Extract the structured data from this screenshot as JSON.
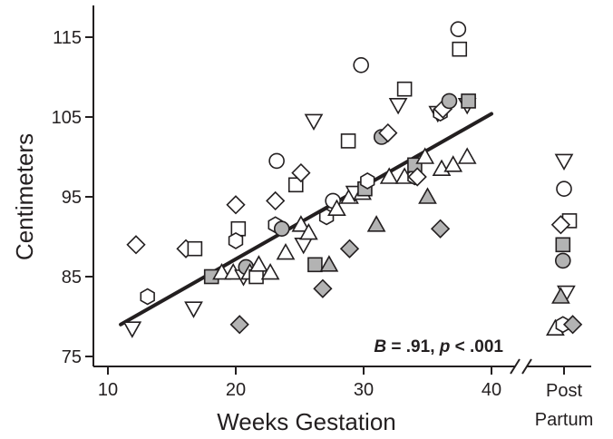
{
  "chart_data": {
    "type": "scatter",
    "xlabel": "Weeks Gestation",
    "ylabel": "Centimeters",
    "xlim": [
      10,
      43
    ],
    "ylim": [
      74,
      119
    ],
    "x_ticks": [
      10,
      20,
      30,
      40
    ],
    "y_ticks": [
      75,
      85,
      95,
      105,
      115
    ],
    "postpartum_tick_label": [
      "Post",
      "Partum"
    ],
    "annotation": {
      "b_label": "B",
      "b_value": " = .91, ",
      "p_label": "p",
      "p_value": " < .001"
    },
    "regression_line": {
      "x": [
        11,
        40
      ],
      "y": [
        79,
        105.4
      ]
    },
    "colors": {
      "ink": "#231f20",
      "open_fill": "#ffffff",
      "shaded_fill": "#b3b3b3"
    },
    "points": [
      {
        "x": 12.2,
        "y": 89.0,
        "shape": "diamond",
        "fill": "open"
      },
      {
        "x": 11.9,
        "y": 78.5,
        "shape": "triangle-down",
        "fill": "open"
      },
      {
        "x": 13.1,
        "y": 82.5,
        "shape": "hexagon",
        "fill": "open"
      },
      {
        "x": 16.1,
        "y": 88.5,
        "shape": "diamond",
        "fill": "open"
      },
      {
        "x": 16.8,
        "y": 88.5,
        "shape": "square",
        "fill": "open"
      },
      {
        "x": 16.7,
        "y": 81.0,
        "shape": "triangle-down",
        "fill": "open"
      },
      {
        "x": 18.1,
        "y": 85.0,
        "shape": "square",
        "fill": "shaded"
      },
      {
        "x": 18.9,
        "y": 85.5,
        "shape": "triangle-up",
        "fill": "open"
      },
      {
        "x": 20.0,
        "y": 94.0,
        "shape": "diamond",
        "fill": "open"
      },
      {
        "x": 20.2,
        "y": 91.0,
        "shape": "square",
        "fill": "open"
      },
      {
        "x": 20.0,
        "y": 89.5,
        "shape": "hexagon",
        "fill": "open"
      },
      {
        "x": 19.8,
        "y": 85.5,
        "shape": "triangle-up",
        "fill": "open"
      },
      {
        "x": 20.3,
        "y": 79.0,
        "shape": "diamond",
        "fill": "shaded"
      },
      {
        "x": 20.6,
        "y": 85.0,
        "shape": "triangle-down",
        "fill": "open"
      },
      {
        "x": 20.8,
        "y": 86.2,
        "shape": "circle",
        "fill": "shaded"
      },
      {
        "x": 21.1,
        "y": 85.5,
        "shape": "triangle-up",
        "fill": "open"
      },
      {
        "x": 21.6,
        "y": 85.0,
        "shape": "square",
        "fill": "open"
      },
      {
        "x": 21.8,
        "y": 86.5,
        "shape": "triangle-up",
        "fill": "open"
      },
      {
        "x": 22.7,
        "y": 85.5,
        "shape": "triangle-up",
        "fill": "open"
      },
      {
        "x": 23.1,
        "y": 94.5,
        "shape": "diamond",
        "fill": "open"
      },
      {
        "x": 23.2,
        "y": 99.5,
        "shape": "circle",
        "fill": "open"
      },
      {
        "x": 23.1,
        "y": 91.5,
        "shape": "hexagon",
        "fill": "open"
      },
      {
        "x": 23.6,
        "y": 91.0,
        "shape": "circle",
        "fill": "shaded"
      },
      {
        "x": 23.9,
        "y": 88.0,
        "shape": "triangle-up",
        "fill": "open"
      },
      {
        "x": 24.7,
        "y": 96.5,
        "shape": "square",
        "fill": "open"
      },
      {
        "x": 25.1,
        "y": 98.0,
        "shape": "diamond",
        "fill": "open"
      },
      {
        "x": 25.1,
        "y": 91.5,
        "shape": "triangle-up",
        "fill": "open"
      },
      {
        "x": 25.3,
        "y": 89.0,
        "shape": "triangle-down",
        "fill": "open"
      },
      {
        "x": 25.7,
        "y": 90.5,
        "shape": "triangle-up",
        "fill": "open"
      },
      {
        "x": 26.1,
        "y": 104.5,
        "shape": "triangle-down",
        "fill": "open"
      },
      {
        "x": 26.2,
        "y": 86.5,
        "shape": "square",
        "fill": "shaded"
      },
      {
        "x": 26.8,
        "y": 83.5,
        "shape": "diamond",
        "fill": "shaded"
      },
      {
        "x": 27.1,
        "y": 92.5,
        "shape": "hexagon",
        "fill": "open"
      },
      {
        "x": 27.3,
        "y": 86.5,
        "shape": "triangle-up",
        "fill": "shaded"
      },
      {
        "x": 27.6,
        "y": 94.5,
        "shape": "circle",
        "fill": "open"
      },
      {
        "x": 27.9,
        "y": 93.5,
        "shape": "triangle-up",
        "fill": "open"
      },
      {
        "x": 28.8,
        "y": 102.0,
        "shape": "square",
        "fill": "open"
      },
      {
        "x": 28.9,
        "y": 88.5,
        "shape": "diamond",
        "fill": "shaded"
      },
      {
        "x": 28.9,
        "y": 95.0,
        "shape": "triangle-up",
        "fill": "open"
      },
      {
        "x": 29.3,
        "y": 95.5,
        "shape": "triangle-down",
        "fill": "open"
      },
      {
        "x": 29.8,
        "y": 111.5,
        "shape": "circle",
        "fill": "open"
      },
      {
        "x": 29.9,
        "y": 95.5,
        "shape": "triangle-up",
        "fill": "open"
      },
      {
        "x": 30.1,
        "y": 96.0,
        "shape": "square",
        "fill": "shaded"
      },
      {
        "x": 30.3,
        "y": 97.0,
        "shape": "hexagon",
        "fill": "open"
      },
      {
        "x": 31.0,
        "y": 91.5,
        "shape": "triangle-up",
        "fill": "shaded"
      },
      {
        "x": 31.4,
        "y": 102.5,
        "shape": "circle",
        "fill": "shaded"
      },
      {
        "x": 31.9,
        "y": 103.0,
        "shape": "diamond",
        "fill": "open"
      },
      {
        "x": 32.0,
        "y": 97.5,
        "shape": "triangle-up",
        "fill": "open"
      },
      {
        "x": 32.7,
        "y": 106.5,
        "shape": "triangle-down",
        "fill": "open"
      },
      {
        "x": 33.2,
        "y": 108.5,
        "shape": "square",
        "fill": "open"
      },
      {
        "x": 33.2,
        "y": 97.5,
        "shape": "triangle-up",
        "fill": "open"
      },
      {
        "x": 34.0,
        "y": 97.5,
        "shape": "hexagon",
        "fill": "open"
      },
      {
        "x": 34.0,
        "y": 99.0,
        "shape": "square",
        "fill": "shaded"
      },
      {
        "x": 34.2,
        "y": 97.5,
        "shape": "diamond",
        "fill": "open"
      },
      {
        "x": 34.8,
        "y": 100.0,
        "shape": "triangle-up",
        "fill": "open"
      },
      {
        "x": 35.0,
        "y": 95.0,
        "shape": "triangle-up",
        "fill": "shaded"
      },
      {
        "x": 35.8,
        "y": 105.5,
        "shape": "triangle-down",
        "fill": "open"
      },
      {
        "x": 36.0,
        "y": 105.5,
        "shape": "hexagon",
        "fill": "open"
      },
      {
        "x": 36.2,
        "y": 106.0,
        "shape": "diamond",
        "fill": "open"
      },
      {
        "x": 36.0,
        "y": 91.0,
        "shape": "diamond",
        "fill": "shaded"
      },
      {
        "x": 36.1,
        "y": 98.5,
        "shape": "triangle-up",
        "fill": "open"
      },
      {
        "x": 36.7,
        "y": 107.0,
        "shape": "circle",
        "fill": "shaded"
      },
      {
        "x": 37.0,
        "y": 99.0,
        "shape": "triangle-up",
        "fill": "open"
      },
      {
        "x": 37.4,
        "y": 116.0,
        "shape": "circle",
        "fill": "open"
      },
      {
        "x": 37.5,
        "y": 113.5,
        "shape": "square",
        "fill": "open"
      },
      {
        "x": 38.1,
        "y": 106.5,
        "shape": "triangle-down",
        "fill": "open"
      },
      {
        "x": 38.2,
        "y": 107.0,
        "shape": "square",
        "fill": "shaded"
      },
      {
        "x": 38.1,
        "y": 100.0,
        "shape": "triangle-up",
        "fill": "open"
      }
    ],
    "postpartum_points": [
      {
        "dx": 0.0,
        "y": 99.5,
        "shape": "triangle-down",
        "fill": "open"
      },
      {
        "dx": 0.0,
        "y": 96.0,
        "shape": "circle",
        "fill": "open"
      },
      {
        "dx": 0.5,
        "y": 92.0,
        "shape": "square",
        "fill": "open"
      },
      {
        "dx": -0.3,
        "y": 91.5,
        "shape": "diamond",
        "fill": "open"
      },
      {
        "dx": -0.1,
        "y": 89.0,
        "shape": "square",
        "fill": "shaded"
      },
      {
        "dx": -0.1,
        "y": 87.0,
        "shape": "circle",
        "fill": "shaded"
      },
      {
        "dx": 0.2,
        "y": 83.0,
        "shape": "triangle-down",
        "fill": "open"
      },
      {
        "dx": -0.3,
        "y": 82.5,
        "shape": "triangle-up",
        "fill": "shaded"
      },
      {
        "dx": -0.8,
        "y": 78.5,
        "shape": "triangle-up",
        "fill": "open"
      },
      {
        "dx": -0.1,
        "y": 79.0,
        "shape": "hexagon",
        "fill": "open"
      },
      {
        "dx": 0.8,
        "y": 79.0,
        "shape": "diamond",
        "fill": "shaded"
      }
    ]
  }
}
